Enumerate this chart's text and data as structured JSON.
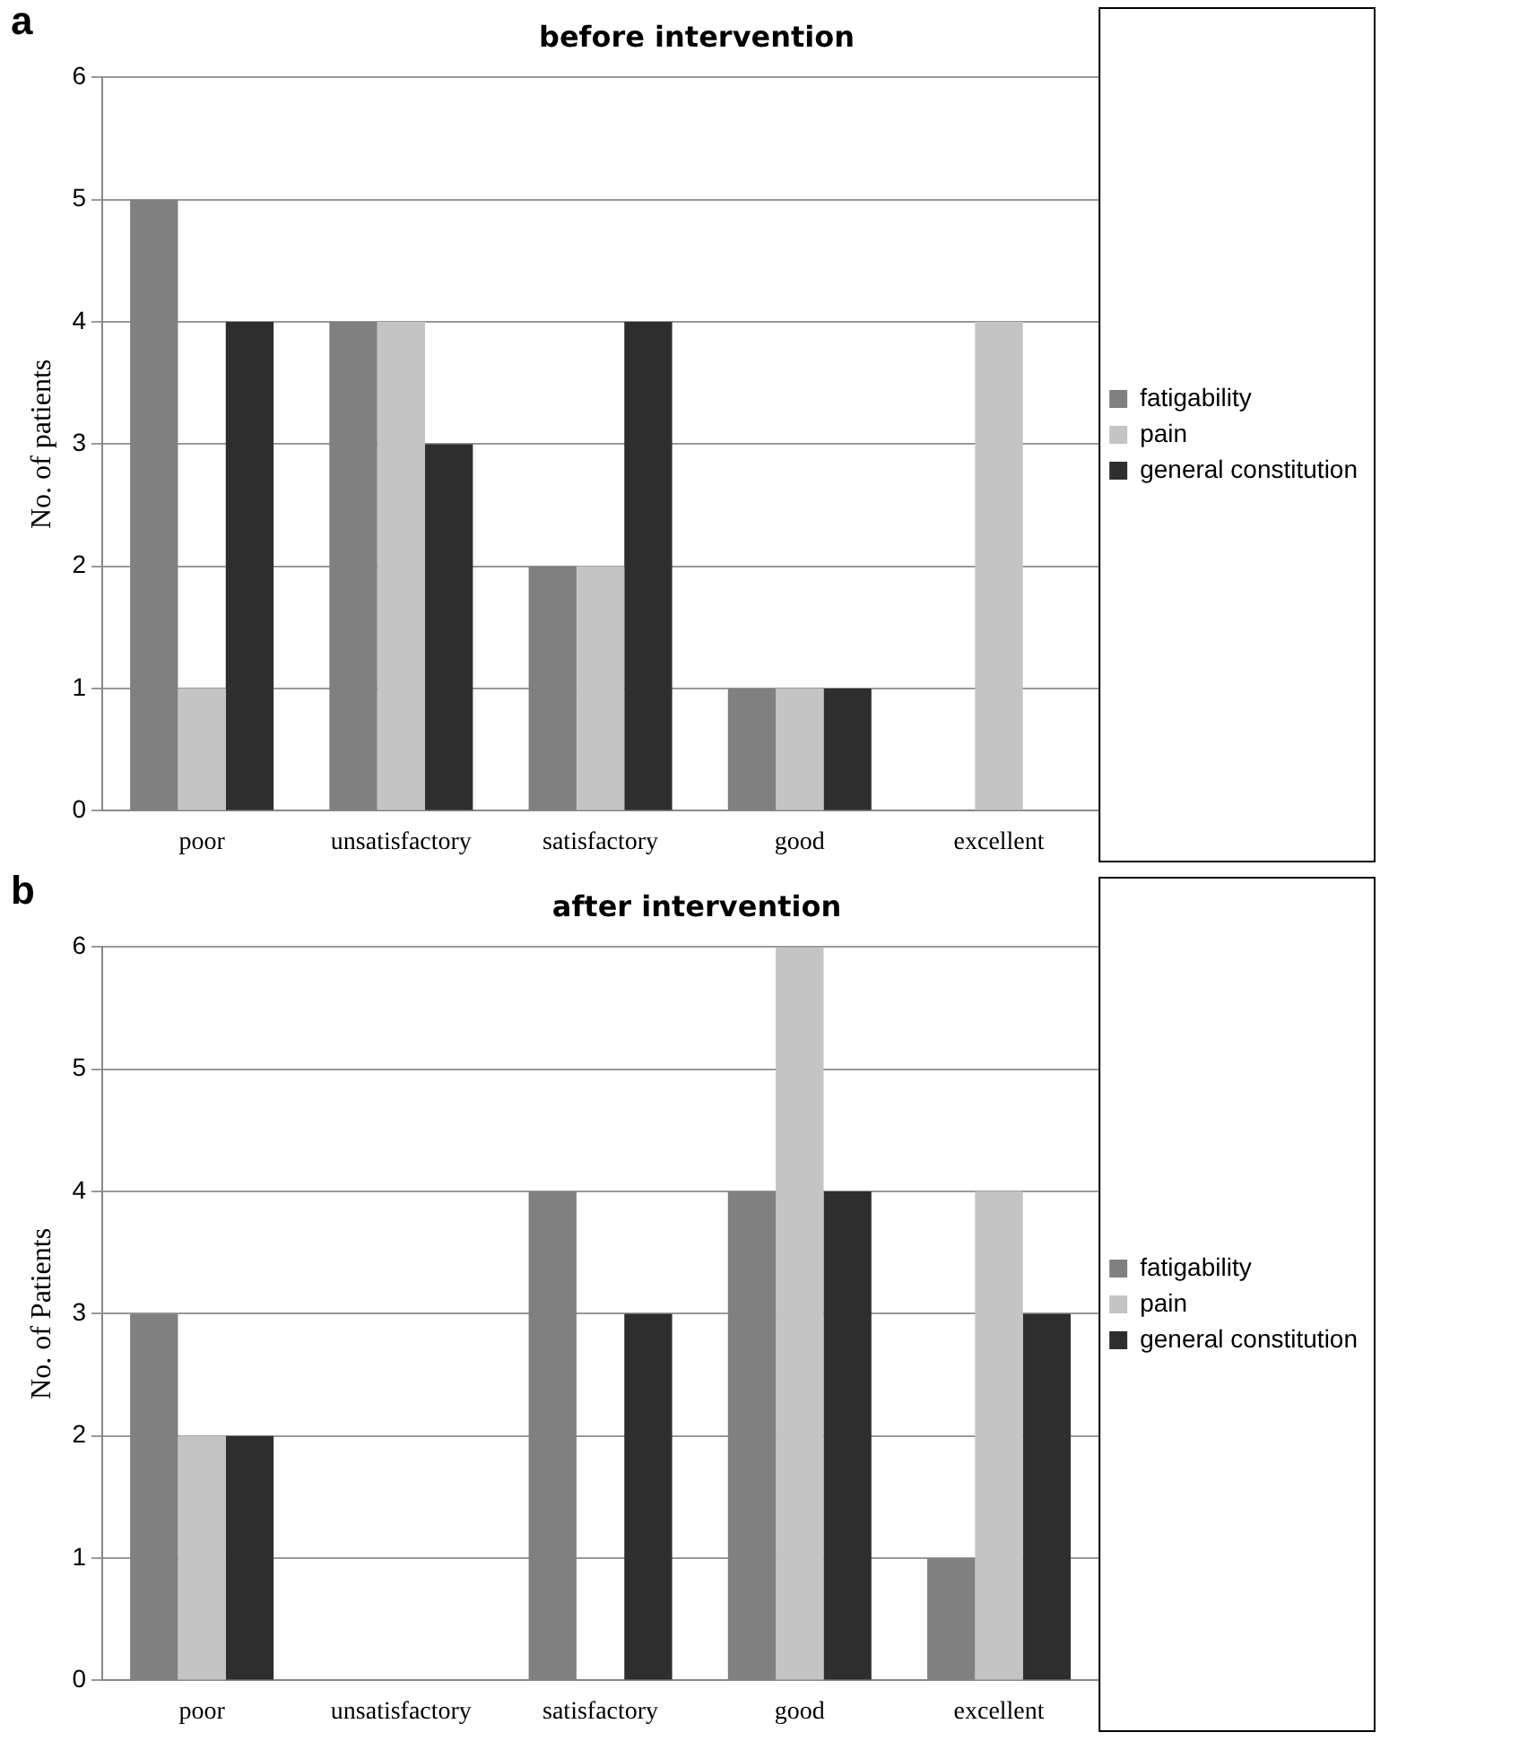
{
  "chart_data": [
    {
      "type": "bar",
      "title": "before intervention",
      "ylabel": "No. of patients",
      "annotations": [
        "a"
      ],
      "categories": [
        "poor",
        "unsatisfactory",
        "satisfactory",
        "good",
        "excellent"
      ],
      "series": [
        {
          "name": "fatigability",
          "color": "#808080",
          "values": [
            5,
            4,
            2,
            1,
            0
          ]
        },
        {
          "name": "pain",
          "color": "#c4c4c4",
          "values": [
            1,
            4,
            2,
            1,
            4
          ]
        },
        {
          "name": "general constitution",
          "color": "#2e2e2e",
          "values": [
            4,
            3,
            4,
            1,
            0
          ]
        }
      ],
      "ylim": [
        0,
        6
      ],
      "yticks": [
        0,
        1,
        2,
        3,
        4,
        5,
        6
      ],
      "grid": "y",
      "legend": "right"
    },
    {
      "type": "bar",
      "title": "after intervention",
      "ylabel": "No. of Patients",
      "annotations": [
        "b"
      ],
      "categories": [
        "poor",
        "unsatisfactory",
        "satisfactory",
        "good",
        "excellent"
      ],
      "series": [
        {
          "name": "fatigability",
          "color": "#808080",
          "values": [
            3,
            0,
            4,
            4,
            1
          ]
        },
        {
          "name": "pain",
          "color": "#c4c4c4",
          "values": [
            2,
            0,
            0,
            6,
            4
          ]
        },
        {
          "name": "general constitution",
          "color": "#2e2e2e",
          "values": [
            2,
            0,
            3,
            4,
            3
          ]
        }
      ],
      "ylim": [
        0,
        6
      ],
      "yticks": [
        0,
        1,
        2,
        3,
        4,
        5,
        6
      ],
      "grid": "y",
      "legend": "right"
    }
  ]
}
